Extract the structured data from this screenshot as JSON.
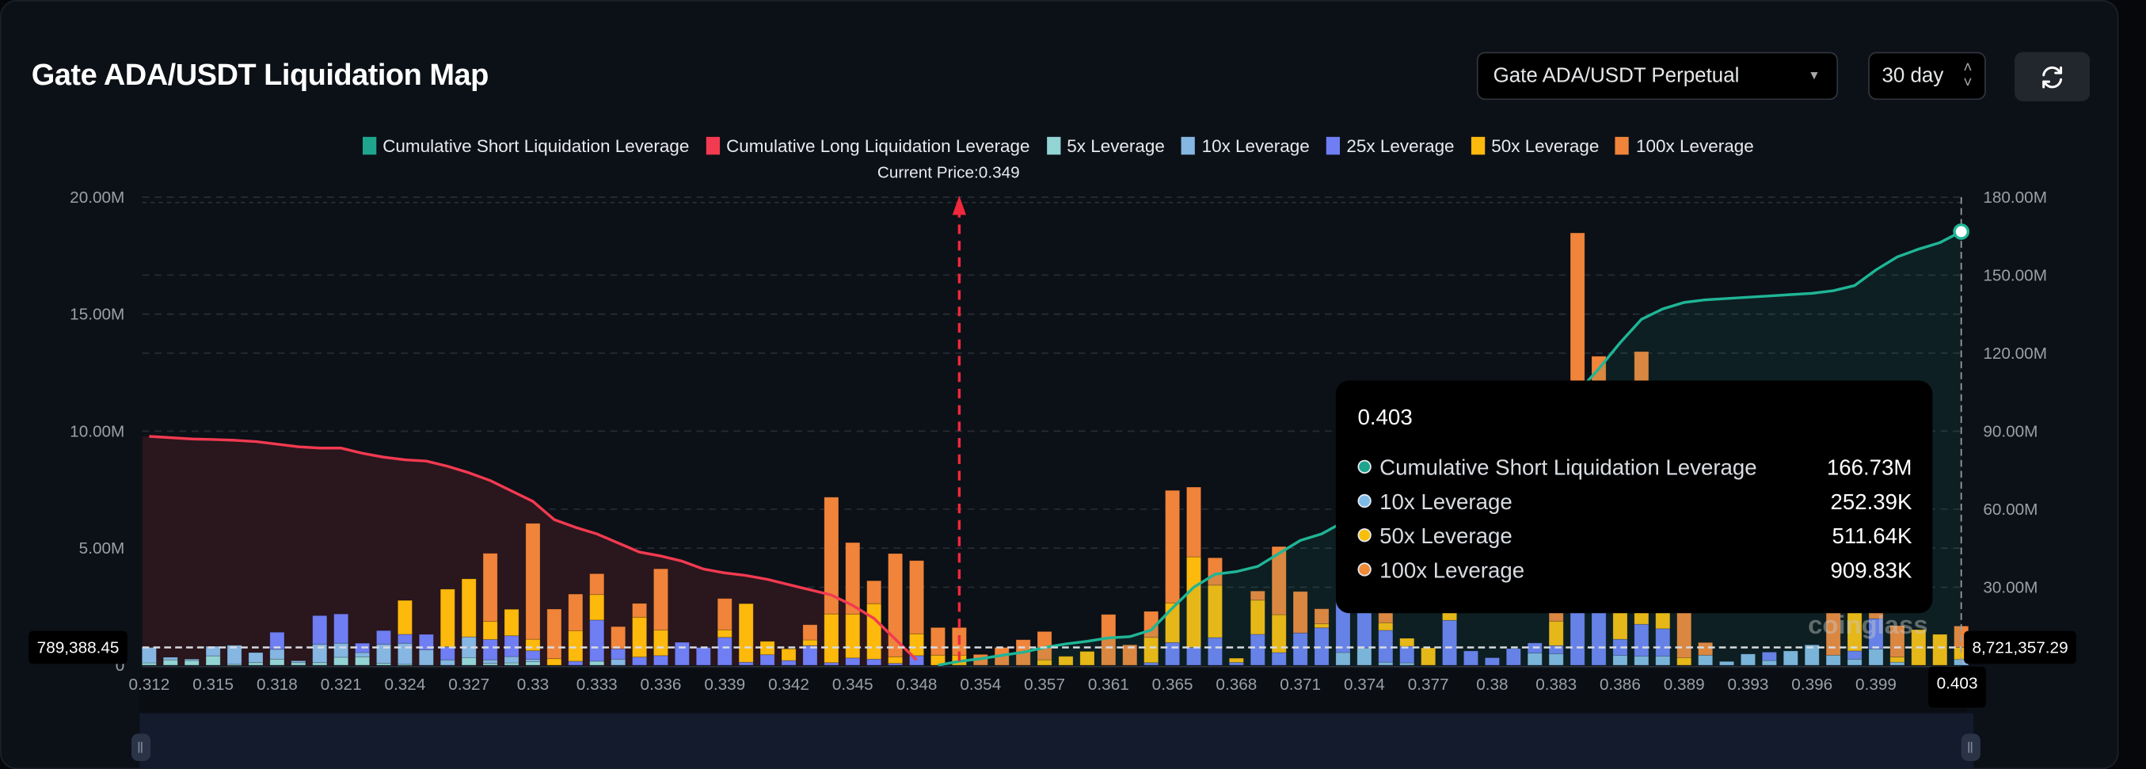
{
  "header": {
    "title": "Gate ADA/USDT Liquidation Map",
    "pair_select": "Gate ADA/USDT Perpetual",
    "range_select": "30 day",
    "refresh_icon": "refresh-icon"
  },
  "current_price_label": "Current Price:0.349",
  "tooltip": {
    "title": "0.403",
    "rows": [
      {
        "label": "Cumulative Short Liquidation Leverage",
        "value": "166.73M",
        "color": "#1fa58e"
      },
      {
        "label": "10x Leverage",
        "value": "252.39K",
        "color": "#7fbde9"
      },
      {
        "label": "50x Leverage",
        "value": "511.64K",
        "color": "#f7bf0b"
      },
      {
        "label": "100x Leverage",
        "value": "909.83K",
        "color": "#ef8a37"
      }
    ]
  },
  "crosshair": {
    "left_value": "789,388.45",
    "right_value": "8,721,357.29",
    "x_value": "0.403"
  },
  "watermark": "coinglass",
  "chart_data": {
    "type": "bar",
    "legend": [
      {
        "name": "Cumulative Short Liquidation Leverage",
        "color": "#1fa58e"
      },
      {
        "name": "Cumulative Long Liquidation Leverage",
        "color": "#f23a50"
      },
      {
        "name": "5x Leverage",
        "color": "#92d3d3"
      },
      {
        "name": "10x Leverage",
        "color": "#86b6e2"
      },
      {
        "name": "25x Leverage",
        "color": "#6f7ef2"
      },
      {
        "name": "50x Leverage",
        "color": "#fdb90c"
      },
      {
        "name": "100x Leverage",
        "color": "#f0843a"
      }
    ],
    "legend_position": "top",
    "y_left": {
      "ticks": [
        "0",
        "5.00M",
        "10.00M",
        "15.00M",
        "20.00M"
      ],
      "range_m": [
        0,
        20
      ]
    },
    "y_right": {
      "ticks": [
        "30.00M",
        "60.00M",
        "90.00M",
        "120.00M",
        "150.00M",
        "180.00M"
      ],
      "range_m": [
        0,
        180
      ]
    },
    "x_tick_labels": [
      "0.312",
      "0.315",
      "0.318",
      "0.321",
      "0.324",
      "0.327",
      "0.33",
      "0.333",
      "0.336",
      "0.339",
      "0.342",
      "0.345",
      "0.348",
      "0.354",
      "0.357",
      "0.361",
      "0.365",
      "0.368",
      "0.371",
      "0.374",
      "0.377",
      "0.38",
      "0.383",
      "0.386",
      "0.389",
      "0.393",
      "0.396",
      "0.399"
    ],
    "x_tick_every": 3,
    "current_price_bar": 38,
    "stack_order": [
      "5x Leverage",
      "10x Leverage",
      "25x Leverage",
      "50x Leverage",
      "100x Leverage"
    ],
    "bars_m": [
      [
        0.1,
        0.66,
        0,
        0,
        0
      ],
      [
        0.23,
        0.11,
        0,
        0,
        0
      ],
      [
        0.2,
        0.06,
        0,
        0,
        0
      ],
      [
        0.4,
        0.41,
        0,
        0,
        0
      ],
      [
        0.04,
        0.81,
        0,
        0,
        0
      ],
      [
        0.11,
        0.43,
        0,
        0,
        0
      ],
      [
        0.26,
        0.42,
        0.73,
        0,
        0
      ],
      [
        0.11,
        0.08,
        0,
        0,
        0
      ],
      [
        0.11,
        0.79,
        1.22,
        0,
        0
      ],
      [
        0.34,
        0.6,
        1.25,
        0,
        0
      ],
      [
        0.36,
        0.18,
        0.4,
        0,
        0
      ],
      [
        0.08,
        0.82,
        0.58,
        0,
        0
      ],
      [
        0.04,
        0.9,
        0.38,
        1.45,
        0
      ],
      [
        0,
        0.66,
        0.66,
        0,
        0
      ],
      [
        0,
        0.23,
        0.56,
        2.46,
        0
      ],
      [
        0.32,
        0.89,
        0,
        2.48,
        0
      ],
      [
        0.08,
        0.15,
        0.87,
        0.77,
        2.91
      ],
      [
        0.1,
        0.27,
        0.89,
        1.13,
        0
      ],
      [
        0.15,
        0.1,
        0.37,
        0.49,
        4.95
      ],
      [
        0,
        0,
        0,
        0.28,
        2.12
      ],
      [
        0,
        0,
        0.17,
        1.3,
        1.57
      ],
      [
        0.17,
        0,
        1.76,
        1.09,
        0.89
      ],
      [
        0,
        0.26,
        0.44,
        0,
        0.95
      ],
      [
        0,
        0,
        0.35,
        1.7,
        0.59
      ],
      [
        0,
        0,
        0.41,
        1.09,
        2.62
      ],
      [
        0,
        0,
        0.98,
        0,
        0
      ],
      [
        0,
        0,
        0.76,
        0,
        0
      ],
      [
        0,
        0,
        1.19,
        0.32,
        1.34
      ],
      [
        0,
        0,
        0.13,
        2.5,
        0
      ],
      [
        0,
        0,
        0.45,
        0.57,
        0
      ],
      [
        0,
        0,
        0.2,
        0.5,
        0
      ],
      [
        0,
        0,
        0.84,
        0.24,
        0.65
      ],
      [
        0,
        0,
        0.11,
        2.08,
        4.99
      ],
      [
        0,
        0,
        0.31,
        1.87,
        3.06
      ],
      [
        0,
        0,
        0.26,
        2.37,
        0.98
      ],
      [
        0,
        0,
        0.08,
        0.28,
        4.41
      ],
      [
        0,
        0,
        0.41,
        0.93,
        3.13
      ],
      [
        0,
        0,
        0,
        0.43,
        1.18
      ],
      [
        0,
        0,
        0,
        0.43,
        1.18
      ],
      [
        0,
        0,
        0,
        0,
        0.46
      ],
      [
        0,
        0,
        0,
        0,
        0.76
      ],
      [
        0,
        0,
        0,
        0,
        1.09
      ],
      [
        0,
        0,
        0,
        0.23,
        1.21
      ],
      [
        0,
        0,
        0,
        0.38,
        0
      ],
      [
        0,
        0,
        0,
        0.59,
        0
      ],
      [
        0,
        0,
        0,
        0,
        2.17
      ],
      [
        0,
        0,
        0,
        0,
        0.87
      ],
      [
        0,
        0,
        0.11,
        1.08,
        1.11
      ],
      [
        0,
        0,
        0.97,
        1.69,
        4.81
      ],
      [
        0,
        0,
        0.76,
        3.87,
        2.98
      ],
      [
        0,
        0,
        1.18,
        2.24,
        1.17
      ],
      [
        0,
        0,
        0.12,
        0.18,
        0
      ],
      [
        0,
        0,
        1.32,
        1.46,
        0.39
      ],
      [
        0,
        0,
        0.54,
        1.62,
        2.91
      ],
      [
        0,
        0,
        1.38,
        0,
        1.77
      ],
      [
        0,
        0,
        1.6,
        0.17,
        0.64
      ],
      [
        0,
        0.54,
        2.9,
        0,
        0
      ],
      [
        0,
        0.74,
        2.56,
        0,
        0
      ],
      [
        0,
        0.13,
        1.36,
        0.32,
        0.6
      ],
      [
        0,
        0.1,
        0.71,
        0.34,
        0
      ],
      [
        0,
        0,
        0,
        0.74,
        0
      ],
      [
        0,
        0,
        1.92,
        0.5,
        0
      ],
      [
        0,
        0,
        0.61,
        0,
        0
      ],
      [
        0,
        0,
        0.32,
        0,
        0
      ],
      [
        0,
        0,
        0.71,
        0,
        0
      ],
      [
        0,
        0.52,
        0.43,
        0,
        0
      ],
      [
        0,
        0.49,
        0.35,
        1.04,
        1.0
      ],
      [
        0,
        0,
        3.5,
        0,
        14.97
      ],
      [
        0,
        0,
        4.0,
        0,
        9.2
      ],
      [
        0,
        0.42,
        0.69,
        2.09,
        0
      ],
      [
        0,
        0.39,
        1.36,
        1.2,
        10.45
      ],
      [
        0,
        0.39,
        1.17,
        1.44,
        0
      ],
      [
        0,
        0,
        0,
        0.32,
        2.5
      ],
      [
        0,
        0.43,
        0,
        0,
        0.54
      ],
      [
        0,
        0.16,
        0,
        0,
        0
      ],
      [
        0,
        0.48,
        0,
        0,
        0
      ],
      [
        0,
        0.2,
        0.36,
        0,
        0
      ],
      [
        0,
        0.61,
        0,
        0,
        0
      ],
      [
        0,
        0.87,
        0,
        0,
        0
      ],
      [
        0,
        0.43,
        0,
        0,
        2.17
      ],
      [
        0,
        0.26,
        0.35,
        2.59,
        0
      ],
      [
        0,
        0.69,
        1.3,
        0,
        0.8
      ],
      [
        0,
        0.13,
        0,
        0.22,
        1.34
      ],
      [
        0,
        0,
        0,
        1.52,
        0
      ],
      [
        0,
        0,
        0,
        1.32,
        0
      ],
      [
        0,
        0.252,
        0,
        0.512,
        0.91
      ]
    ],
    "cumulative_long_m": [
      88,
      87.5,
      87,
      86.8,
      86.5,
      86,
      85,
      84,
      83.5,
      83.5,
      81.5,
      80,
      79,
      78.5,
      76.5,
      74,
      71,
      67,
      63,
      56,
      53,
      50.5,
      47,
      43.5,
      42,
      40,
      37,
      35.5,
      34.5,
      33,
      31,
      29,
      27,
      23,
      18,
      10,
      2
    ],
    "cumulative_short_start_bar": 37,
    "cumulative_short_m": [
      0,
      1.5,
      2.5,
      3.8,
      5,
      6.8,
      8.2,
      9.2,
      10.5,
      11,
      13.5,
      22,
      30,
      35,
      36,
      38,
      43,
      48,
      50.5,
      55,
      60,
      64,
      68,
      72,
      76,
      80,
      84,
      88,
      92,
      97,
      105,
      114,
      124,
      133,
      137,
      139.5,
      140.5,
      141,
      141.5,
      142,
      142.5,
      143,
      144,
      146,
      152,
      157,
      160,
      162.5,
      166.73
    ]
  }
}
